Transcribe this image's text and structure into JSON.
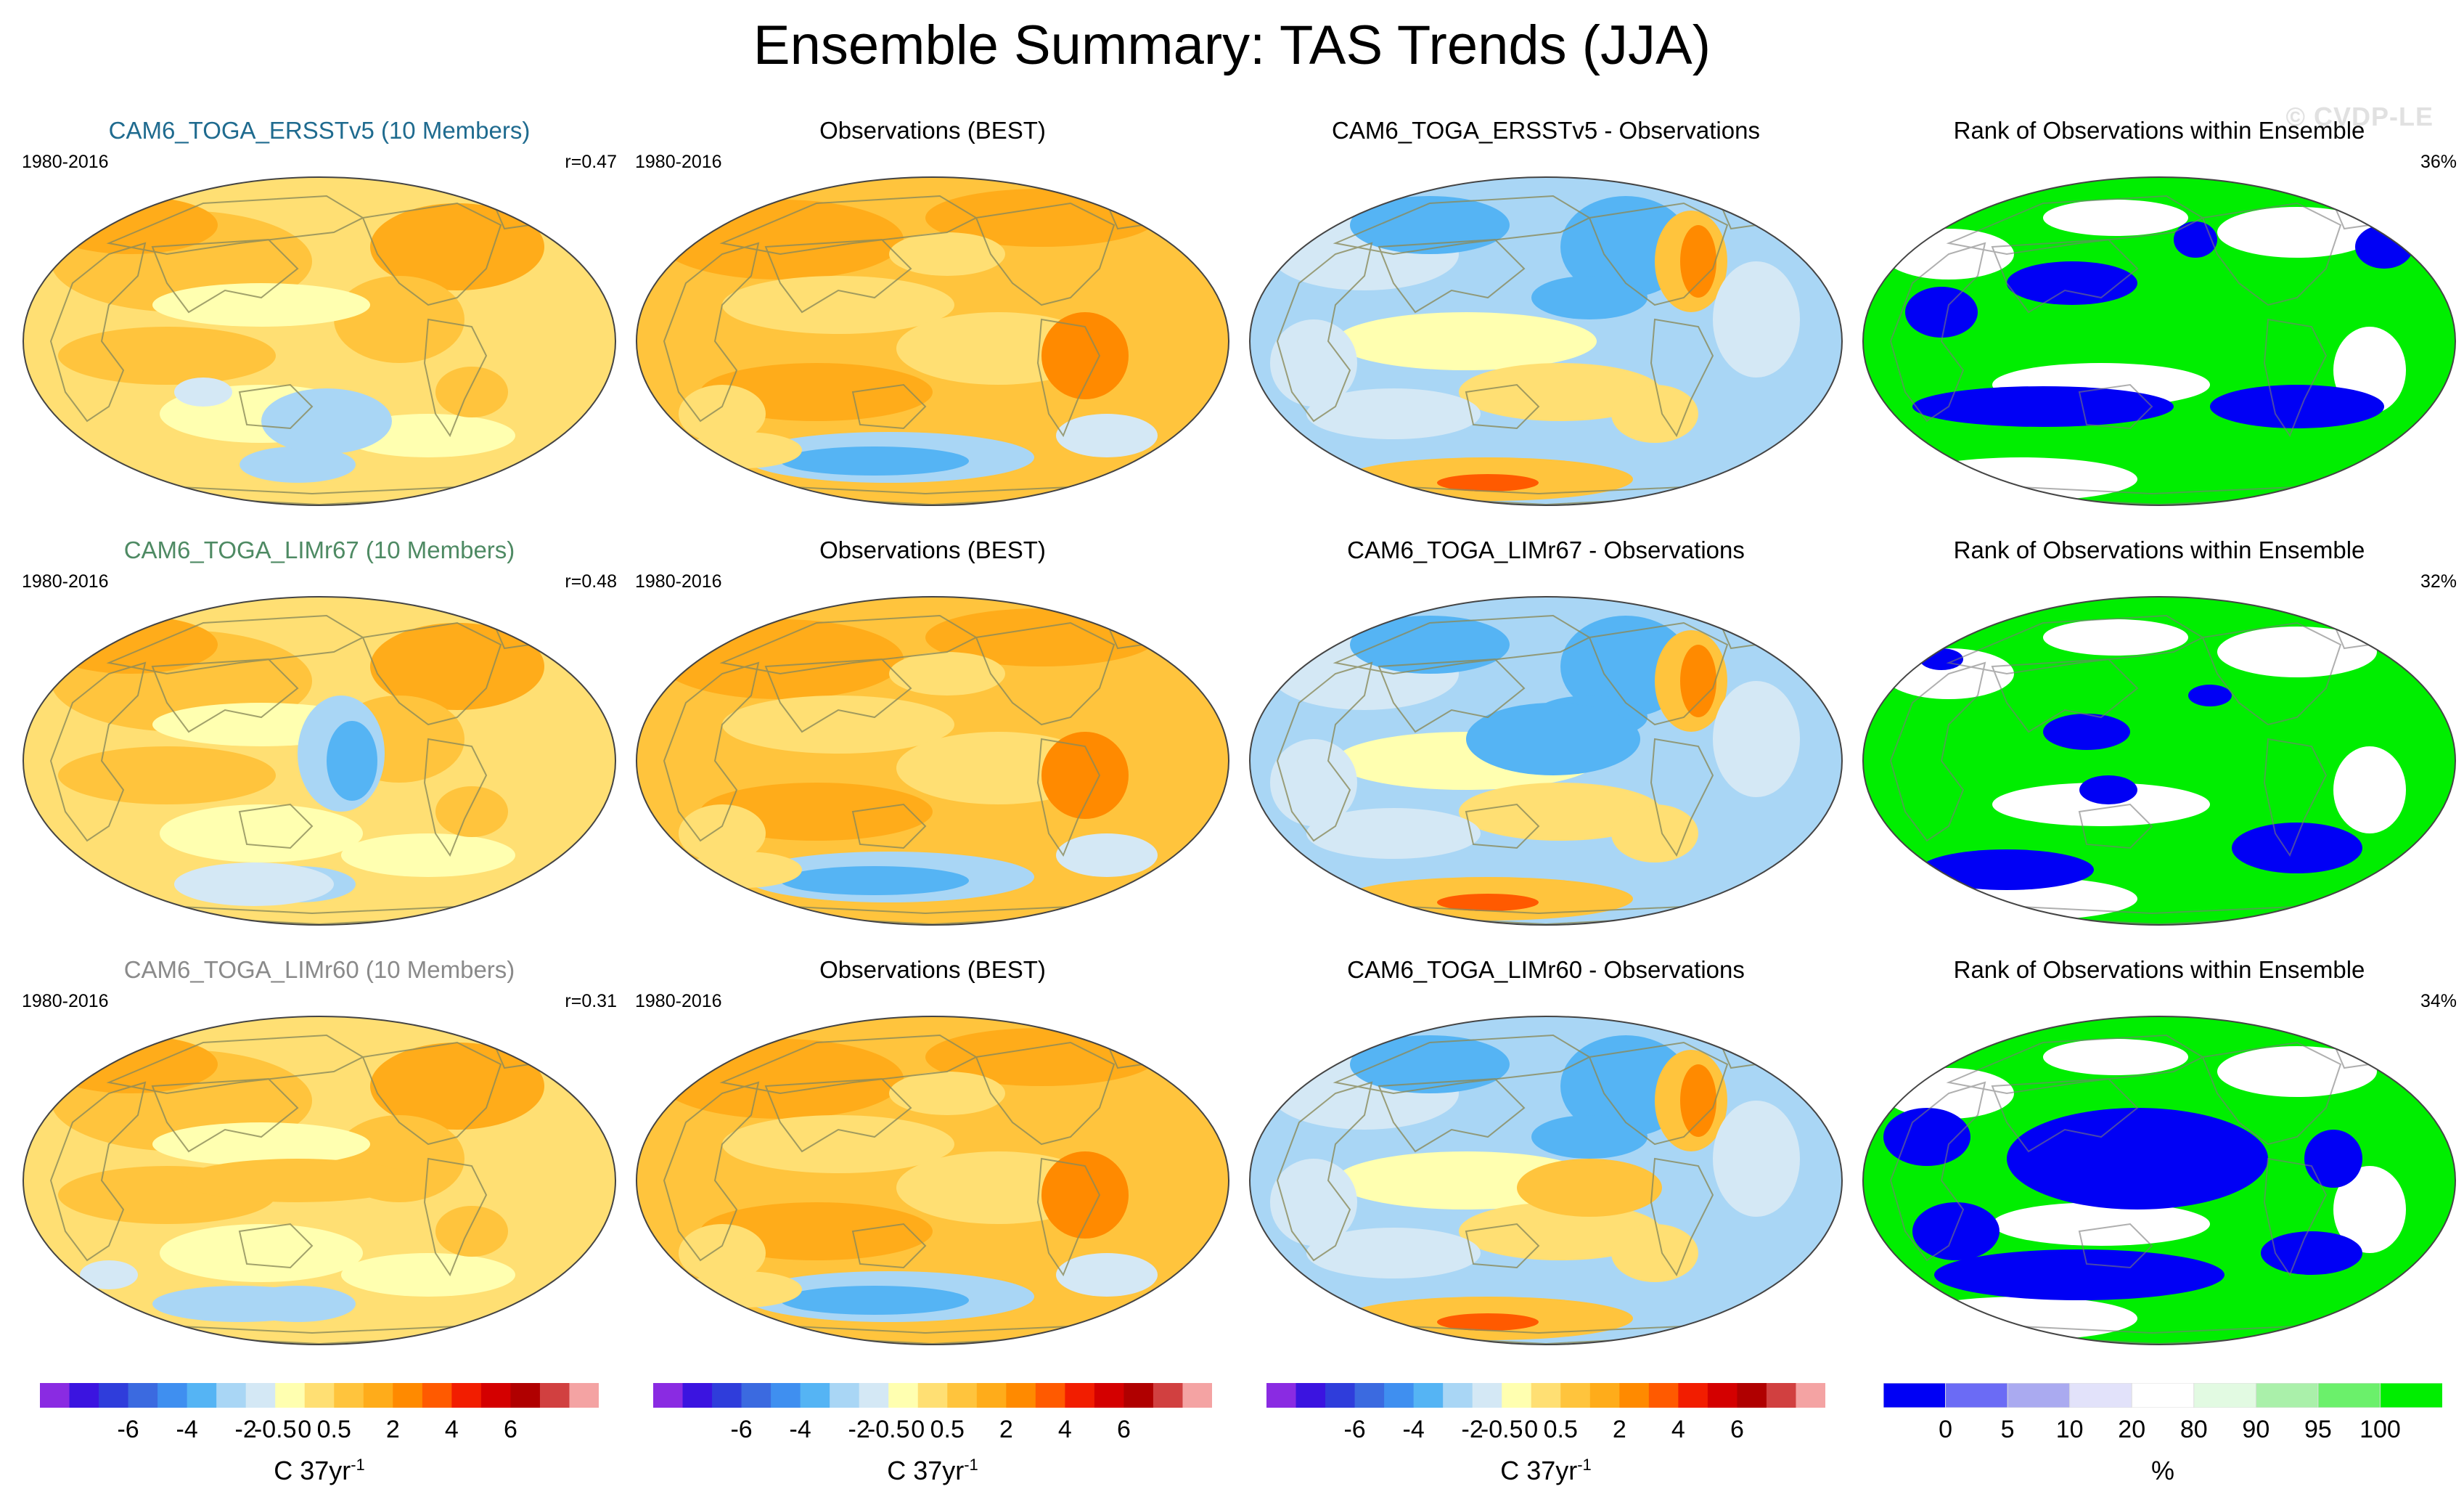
{
  "figure": {
    "title": "Ensemble Summary: TAS Trends (JJA)",
    "watermark": "© CVDP-LE"
  },
  "rows": [
    {
      "ensemble": {
        "title": "CAM6_TOGA_ERSSTv5 (10 Members)",
        "title_color": "#1f6b8f",
        "period": "1980-2016",
        "correlation": "r=0.47"
      },
      "observations": {
        "title": "Observations (BEST)",
        "period": "1980-2016"
      },
      "difference": {
        "title": "CAM6_TOGA_ERSSTv5 - Observations"
      },
      "rank": {
        "title": "Rank of Observations within Ensemble",
        "percent": "36%"
      }
    },
    {
      "ensemble": {
        "title": "CAM6_TOGA_LIMr67 (10 Members)",
        "title_color": "#4e8a63",
        "period": "1980-2016",
        "correlation": "r=0.48"
      },
      "observations": {
        "title": "Observations (BEST)",
        "period": "1980-2016"
      },
      "difference": {
        "title": "CAM6_TOGA_LIMr67 - Observations"
      },
      "rank": {
        "title": "Rank of Observations within Ensemble",
        "percent": "32%"
      }
    },
    {
      "ensemble": {
        "title": "CAM6_TOGA_LIMr60 (10 Members)",
        "title_color": "#8a8a8a",
        "period": "1980-2016",
        "correlation": "r=0.31"
      },
      "observations": {
        "title": "Observations (BEST)",
        "period": "1980-2016"
      },
      "difference": {
        "title": "CAM6_TOGA_LIMr60 - Observations"
      },
      "rank": {
        "title": "Rank of Observations within Ensemble",
        "percent": "34%"
      }
    }
  ],
  "colorbars": {
    "trend": {
      "colors": [
        "#8a2be2",
        "#3b14e0",
        "#2f3ddb",
        "#3b6ae0",
        "#3f8ff0",
        "#55b4f4",
        "#a9d6f5",
        "#d4e8f5",
        "#ffffb0",
        "#ffdf73",
        "#ffc43d",
        "#ffac1a",
        "#ff8a00",
        "#ff5a00",
        "#f21d00",
        "#d40000",
        "#b00000",
        "#d14040",
        "#f4a3a3"
      ],
      "ticks": [
        "-6",
        "-4",
        "-2",
        "-0.5",
        "0",
        "0.5",
        "2",
        "4",
        "6"
      ],
      "unit_base": "C 37yr",
      "unit_exp": "-1"
    },
    "rank": {
      "colors": [
        "#0000f5",
        "#6b6bf5",
        "#aaaaf0",
        "#e2e2fa",
        "#ffffff",
        "#e2fae2",
        "#aaf0aa",
        "#6bf06b",
        "#00ee00"
      ],
      "ticks": [
        "0",
        "5",
        "10",
        "20",
        "80",
        "90",
        "95",
        "100"
      ],
      "unit": "%"
    }
  },
  "chart_data": {
    "type": "heatmap",
    "title": "Ensemble Summary: TAS Trends (JJA)",
    "variable": "TAS",
    "season": "JJA",
    "period": "1980-2016",
    "projection": "Robinson (Pacific-centered global maps)",
    "grid": [
      {
        "row": 1,
        "columns": [
          "CAM6_TOGA_ERSSTv5 (10 Members)",
          "Observations (BEST)",
          "CAM6_TOGA_ERSSTv5 - Observations",
          "Rank of Observations within Ensemble"
        ],
        "pattern_correlation": 0.47,
        "rank_percent": 36
      },
      {
        "row": 2,
        "columns": [
          "CAM6_TOGA_LIMr67 (10 Members)",
          "Observations (BEST)",
          "CAM6_TOGA_LIMr67 - Observations",
          "Rank of Observations within Ensemble"
        ],
        "pattern_correlation": 0.48,
        "rank_percent": 32
      },
      {
        "row": 3,
        "columns": [
          "CAM6_TOGA_LIMr60 (10 Members)",
          "Observations (BEST)",
          "CAM6_TOGA_LIMr60 - Observations",
          "Rank of Observations within Ensemble"
        ],
        "pattern_correlation": 0.31,
        "rank_percent": 34
      }
    ],
    "trend_colorbar_levels": [
      -6,
      -5,
      -4,
      -3,
      -2,
      -1,
      -0.5,
      -0.25,
      0,
      0.25,
      0.5,
      1,
      2,
      3,
      4,
      5,
      6
    ],
    "trend_units": "C 37yr^-1",
    "rank_colorbar_levels": [
      0,
      5,
      10,
      20,
      80,
      90,
      95,
      100
    ],
    "rank_units": "%"
  }
}
